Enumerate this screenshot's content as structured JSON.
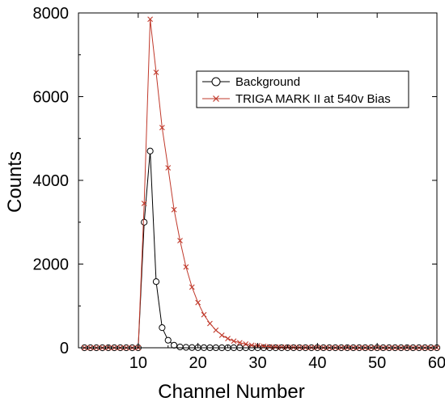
{
  "chart_data": {
    "type": "line",
    "xlabel": "Channel Number",
    "ylabel": "Counts",
    "xlim": [
      0,
      60
    ],
    "ylim": [
      0,
      8000
    ],
    "xticks": [
      10,
      20,
      30,
      40,
      50,
      60
    ],
    "yticks": [
      0,
      2000,
      4000,
      6000,
      8000
    ],
    "grid": false,
    "legend_position": "top-right",
    "x": [
      1,
      2,
      3,
      4,
      5,
      6,
      7,
      8,
      9,
      10,
      11,
      12,
      13,
      14,
      15,
      16,
      17,
      18,
      19,
      20,
      21,
      22,
      23,
      24,
      25,
      26,
      27,
      28,
      29,
      30,
      31,
      32,
      33,
      34,
      35,
      36,
      37,
      38,
      39,
      40,
      41,
      42,
      43,
      44,
      45,
      46,
      47,
      48,
      49,
      50,
      51,
      52,
      53,
      54,
      55,
      56,
      57,
      58,
      59,
      60
    ],
    "series": [
      {
        "name": "Background",
        "marker": "circle",
        "color": "#000000",
        "values": [
          0,
          0,
          0,
          0,
          0,
          0,
          0,
          0,
          0,
          0,
          3000,
          4700,
          1580,
          480,
          180,
          60,
          20,
          10,
          5,
          3,
          2,
          1,
          1,
          0,
          0,
          0,
          0,
          0,
          0,
          0,
          0,
          0,
          0,
          0,
          0,
          0,
          0,
          0,
          0,
          0,
          0,
          0,
          0,
          0,
          0,
          0,
          0,
          0,
          0,
          0,
          0,
          0,
          0,
          0,
          0,
          0,
          0,
          0,
          0,
          0
        ]
      },
      {
        "name": "TRIGA MARK II at 540v Bias",
        "marker": "x",
        "color": "#c0392b",
        "values": [
          0,
          0,
          0,
          0,
          0,
          0,
          0,
          0,
          0,
          0,
          3450,
          7850,
          6580,
          5260,
          4300,
          3300,
          2560,
          1930,
          1450,
          1080,
          790,
          580,
          420,
          300,
          220,
          160,
          120,
          90,
          60,
          50,
          35,
          25,
          20,
          15,
          12,
          10,
          8,
          6,
          5,
          4,
          3,
          3,
          2,
          2,
          1,
          1,
          1,
          1,
          0,
          0,
          0,
          0,
          0,
          0,
          0,
          0,
          0,
          0,
          0,
          0
        ]
      }
    ]
  }
}
